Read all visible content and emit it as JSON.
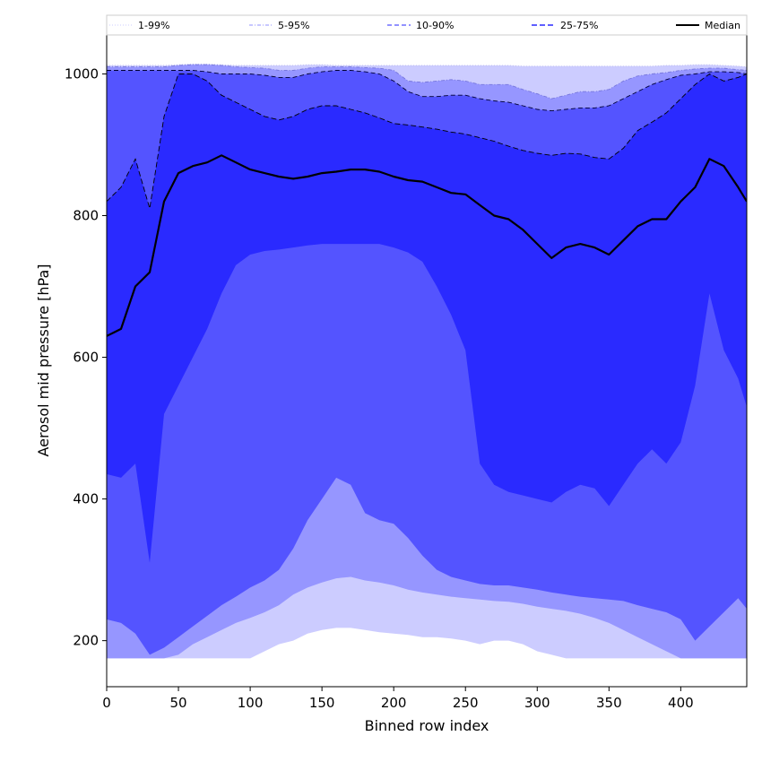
{
  "chart_data": {
    "type": "area",
    "xlabel": "Binned row index",
    "ylabel": "Aerosol mid pressure [hPa]",
    "xlim": [
      0,
      446
    ],
    "ylim": [
      135,
      1055
    ],
    "xticks": [
      0,
      50,
      100,
      150,
      200,
      250,
      300,
      350,
      400
    ],
    "yticks": [
      200,
      400,
      600,
      800,
      1000
    ],
    "grid": false,
    "legend_position": "top",
    "legend": [
      {
        "label": "1-99%",
        "style": "dotted",
        "color": "#ccccff"
      },
      {
        "label": "5-95%",
        "style": "dashdot",
        "color": "#9090ff"
      },
      {
        "label": "10-90%",
        "style": "dashed",
        "color": "#5050ff"
      },
      {
        "label": "25-75%",
        "style": "dashed",
        "color": "#2a2aff"
      },
      {
        "label": "Median",
        "style": "solid",
        "color": "#000000"
      }
    ],
    "colors": {
      "band_1_99": "#ccccff",
      "band_5_95": "#9696ff",
      "band_10_90": "#5454ff",
      "band_25_75": "#2a2aff",
      "median": "#000000"
    },
    "x": [
      0,
      10,
      20,
      30,
      40,
      50,
      60,
      70,
      80,
      90,
      100,
      110,
      120,
      130,
      140,
      150,
      160,
      170,
      180,
      190,
      200,
      210,
      220,
      230,
      240,
      250,
      260,
      270,
      280,
      290,
      300,
      310,
      320,
      330,
      340,
      350,
      360,
      370,
      380,
      390,
      400,
      410,
      420,
      430,
      440,
      446
    ],
    "series": [
      {
        "name": "1-99%",
        "lower": [
          175,
          175,
          175,
          175,
          175,
          175,
          175,
          175,
          175,
          175,
          175,
          185,
          195,
          200,
          210,
          215,
          218,
          218,
          215,
          212,
          210,
          208,
          205,
          205,
          203,
          200,
          195,
          200,
          200,
          195,
          185,
          180,
          175,
          175,
          175,
          175,
          175,
          175,
          175,
          175,
          175,
          175,
          175,
          175,
          175,
          175
        ],
        "upper": [
          1012,
          1012,
          1012,
          1012,
          1012,
          1013,
          1014,
          1014,
          1013,
          1012,
          1012,
          1012,
          1012,
          1012,
          1013,
          1013,
          1012,
          1012,
          1012,
          1012,
          1012,
          1012,
          1012,
          1012,
          1012,
          1012,
          1012,
          1012,
          1012,
          1011,
          1011,
          1011,
          1011,
          1011,
          1011,
          1011,
          1011,
          1011,
          1011,
          1012,
          1012,
          1013,
          1013,
          1012,
          1011,
          1010
        ]
      },
      {
        "name": "5-95%",
        "lower": [
          175,
          175,
          175,
          175,
          175,
          180,
          195,
          205,
          215,
          225,
          232,
          240,
          250,
          265,
          275,
          282,
          288,
          290,
          285,
          282,
          278,
          272,
          268,
          265,
          262,
          260,
          258,
          256,
          255,
          252,
          248,
          245,
          242,
          238,
          232,
          225,
          215,
          205,
          195,
          185,
          175,
          175,
          175,
          175,
          175,
          175
        ],
        "upper": [
          1010,
          1010,
          1010,
          1010,
          1010,
          1012,
          1013,
          1013,
          1012,
          1010,
          1009,
          1008,
          1005,
          1005,
          1008,
          1010,
          1010,
          1010,
          1009,
          1008,
          1005,
          990,
          988,
          990,
          992,
          990,
          985,
          985,
          985,
          978,
          972,
          965,
          970,
          975,
          975,
          978,
          990,
          997,
          1000,
          1002,
          1005,
          1007,
          1008,
          1008,
          1006,
          1005
        ]
      },
      {
        "name": "10-90%",
        "lower": [
          230,
          225,
          210,
          180,
          190,
          205,
          220,
          235,
          250,
          262,
          275,
          285,
          300,
          330,
          370,
          400,
          430,
          420,
          380,
          370,
          365,
          345,
          320,
          300,
          290,
          285,
          280,
          278,
          278,
          275,
          272,
          268,
          265,
          262,
          260,
          258,
          256,
          250,
          245,
          240,
          230,
          200,
          220,
          240,
          260,
          245
        ],
        "upper": [
          1005,
          1005,
          1005,
          1005,
          1005,
          1005,
          1005,
          1003,
          1000,
          1000,
          1000,
          998,
          995,
          995,
          1000,
          1003,
          1005,
          1005,
          1003,
          1000,
          990,
          975,
          968,
          968,
          970,
          970,
          965,
          962,
          960,
          955,
          950,
          948,
          950,
          952,
          952,
          955,
          965,
          975,
          985,
          992,
          998,
          1000,
          1003,
          1003,
          1002,
          1000
        ]
      },
      {
        "name": "25-75%",
        "lower": [
          435,
          430,
          450,
          310,
          520,
          560,
          600,
          640,
          690,
          730,
          745,
          750,
          752,
          755,
          758,
          760,
          760,
          760,
          760,
          760,
          755,
          748,
          735,
          700,
          660,
          610,
          450,
          420,
          410,
          405,
          400,
          395,
          410,
          420,
          415,
          390,
          420,
          450,
          470,
          450,
          480,
          560,
          690,
          610,
          570,
          530
        ],
        "upper": [
          820,
          840,
          880,
          810,
          940,
          1000,
          1000,
          990,
          970,
          960,
          950,
          940,
          935,
          940,
          950,
          955,
          955,
          950,
          945,
          938,
          930,
          928,
          925,
          922,
          918,
          915,
          910,
          905,
          898,
          892,
          888,
          885,
          888,
          887,
          882,
          880,
          895,
          920,
          932,
          945,
          965,
          985,
          1000,
          990,
          995,
          1000
        ]
      },
      {
        "name": "Median",
        "values": [
          630,
          640,
          700,
          720,
          820,
          860,
          870,
          875,
          885,
          875,
          865,
          860,
          855,
          852,
          855,
          860,
          862,
          865,
          865,
          862,
          855,
          850,
          848,
          840,
          832,
          830,
          815,
          800,
          795,
          780,
          760,
          740,
          755,
          760,
          755,
          745,
          765,
          785,
          795,
          795,
          820,
          840,
          880,
          870,
          840,
          820
        ]
      }
    ]
  }
}
